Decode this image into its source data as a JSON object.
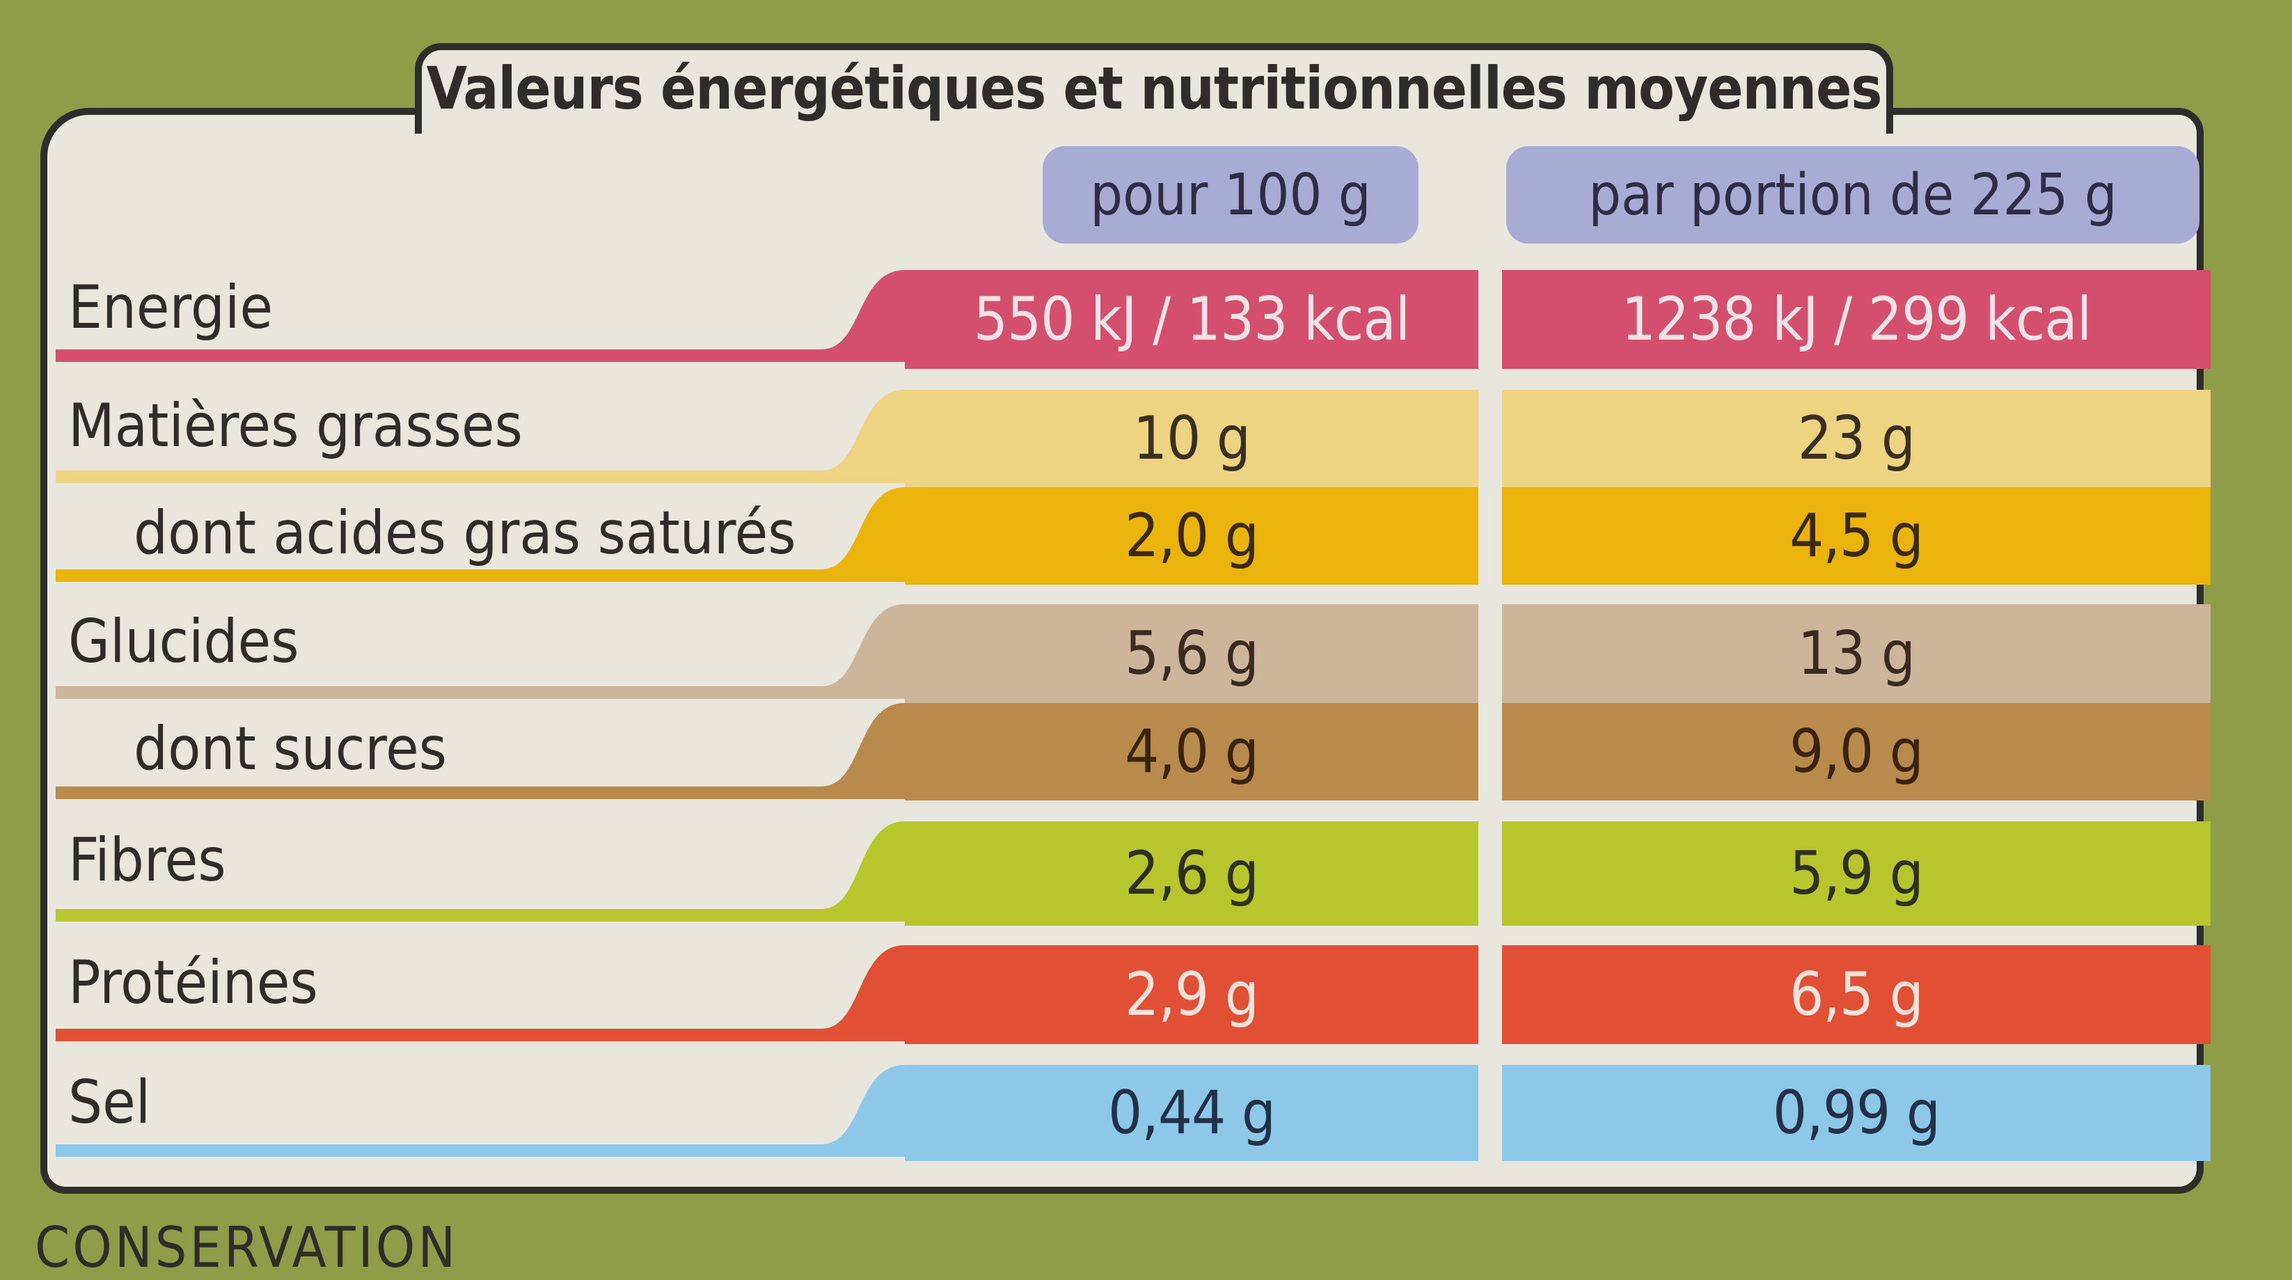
{
  "title": "Valeurs énergétiques et nutritionnelles moyennes",
  "columns": [
    "pour 100 g",
    "par portion de 225 g"
  ],
  "rows": [
    {
      "label": "Energie",
      "per100": "550 kJ / 133 kcal",
      "portion": "1238 kJ / 299 kcal",
      "color": "#d44e6e",
      "text_color": "#f3e3e6"
    },
    {
      "label": "Matières grasses",
      "per100": "10 g",
      "portion": "23 g",
      "color": "#eed383",
      "text_color": "#3a3020"
    },
    {
      "label": "dont acides gras saturés",
      "per100": "2,0 g",
      "portion": "4,5 g",
      "color": "#eab40c",
      "text_color": "#3a2a10"
    },
    {
      "label": "Glucides",
      "per100": "5,6 g",
      "portion": "13 g",
      "color": "#cdb59c",
      "text_color": "#3a2a20"
    },
    {
      "label": "dont sucres",
      "per100": "4,0 g",
      "portion": "9,0 g",
      "color": "#b88a4c",
      "text_color": "#3a2410"
    },
    {
      "label": "Fibres",
      "per100": "2,6 g",
      "portion": "5,9 g",
      "color": "#b7c62c",
      "text_color": "#2f3020"
    },
    {
      "label": "Protéines",
      "per100": "2,9 g",
      "portion": "6,5 g",
      "color": "#e14f34",
      "text_color": "#f6e2da"
    },
    {
      "label": "Sel",
      "per100": "0,44 g",
      "portion": "0,99 g",
      "color": "#8ec8e8",
      "text_color": "#223048"
    }
  ],
  "footer_text": "CONSERVATION"
}
